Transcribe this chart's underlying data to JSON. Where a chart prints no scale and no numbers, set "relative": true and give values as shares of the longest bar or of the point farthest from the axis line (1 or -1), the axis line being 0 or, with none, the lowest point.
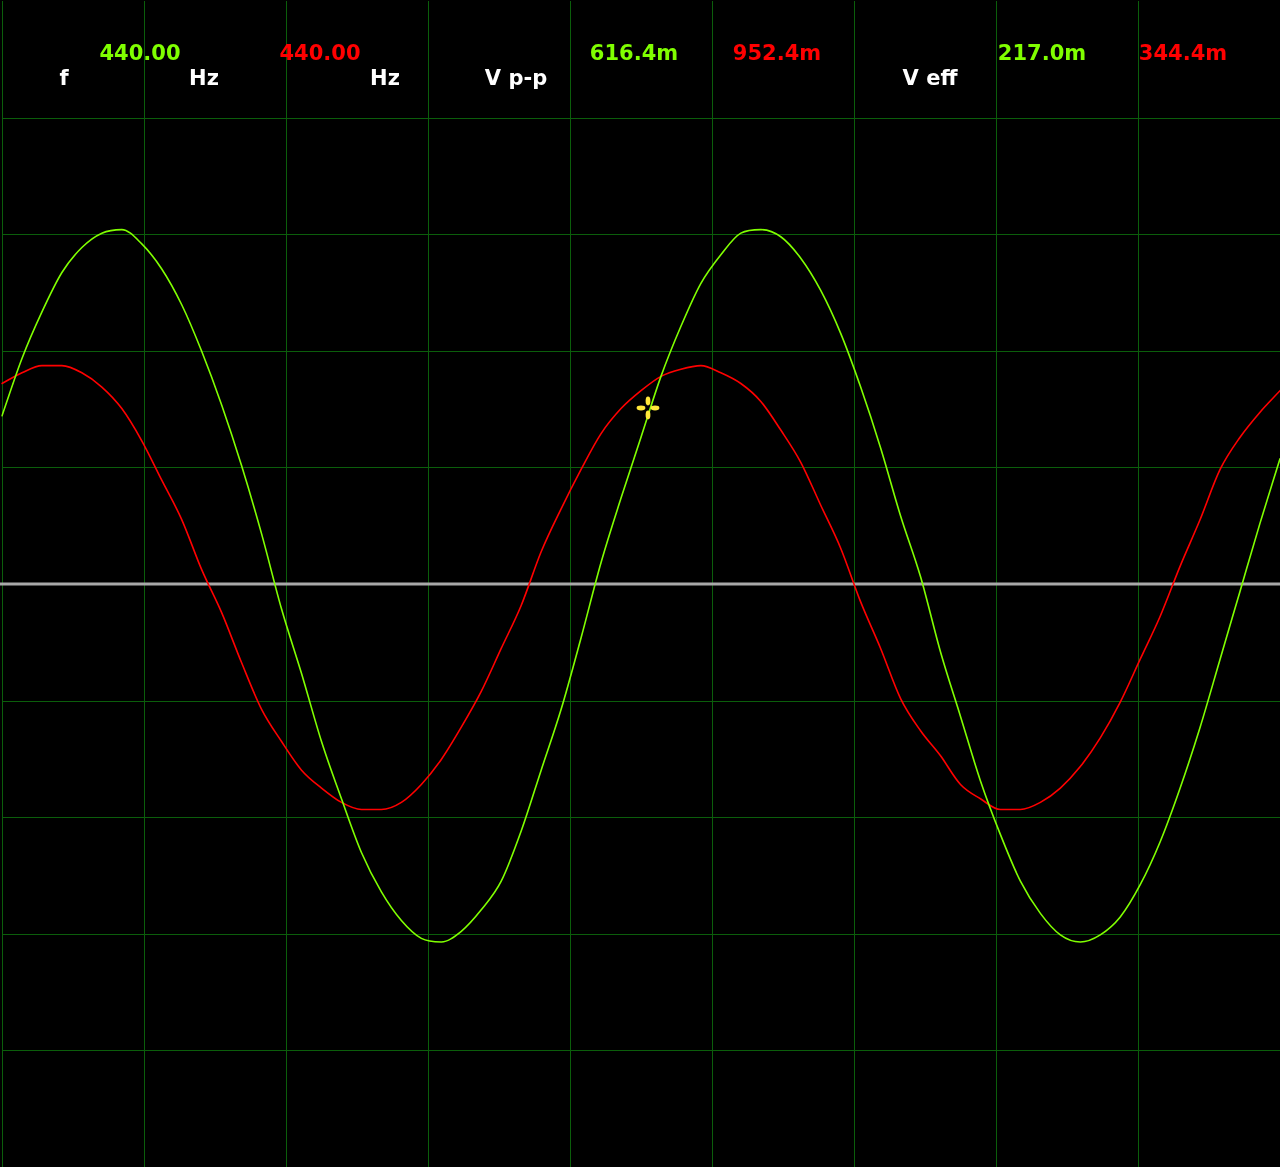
{
  "chart_data": {
    "type": "line",
    "relative": true,
    "grid": true,
    "marker": "none",
    "line_style": "solid",
    "annotations": [
      "f",
      "440.00",
      "Hz",
      "440.00",
      "Hz",
      "V p-p",
      "616.4m",
      "952.4m",
      "V eff",
      "217.0m",
      "344.4m"
    ],
    "categories": [
      null,
      null,
      null,
      null,
      null,
      null,
      null,
      null,
      null,
      null,
      null,
      null,
      null,
      null,
      null,
      null,
      null,
      null,
      null,
      null,
      null,
      null,
      null,
      null,
      null,
      null,
      null,
      null,
      null,
      null,
      null,
      null,
      null,
      null,
      null,
      null,
      null,
      null,
      null,
      null,
      null,
      null,
      null,
      null,
      null,
      null,
      null,
      null,
      null,
      null,
      null,
      null,
      null,
      null,
      null,
      null,
      null,
      null,
      null,
      null,
      null,
      null,
      null,
      null,
      null
    ],
    "series": [
      {
        "color": "#80ff00",
        "values": [
          0.47,
          0.63,
          0.76,
          0.87,
          0.94,
          0.98,
          0.99,
          0.95,
          0.88,
          0.78,
          0.65,
          0.5,
          0.33,
          0.14,
          -0.07,
          -0.25,
          -0.44,
          -0.6,
          -0.75,
          -0.86,
          -0.94,
          -0.99,
          -1,
          -0.97,
          -0.91,
          -0.83,
          -0.69,
          -0.52,
          -0.35,
          -0.15,
          0.06,
          0.24,
          0.41,
          0.58,
          0.72,
          0.84,
          0.92,
          0.98,
          0.99,
          0.97,
          0.91,
          0.82,
          0.7,
          0.55,
          0.38,
          0.19,
          0.02,
          -0.19,
          -0.37,
          -0.55,
          -0.7,
          -0.83,
          -0.92,
          -0.98,
          -1,
          -0.98,
          -0.93,
          -0.84,
          -0.72,
          -0.57,
          -0.4,
          -0.21,
          -0.02,
          0.17,
          0.35
        ]
      },
      {
        "color": "#ff0000",
        "values": [
          0.56,
          0.59,
          0.61,
          0.61,
          0.59,
          0.55,
          0.49,
          0.4,
          0.29,
          0.18,
          0.04,
          -0.08,
          -0.22,
          -0.35,
          -0.44,
          -0.52,
          -0.57,
          -0.61,
          -0.63,
          -0.63,
          -0.61,
          -0.56,
          -0.49,
          -0.4,
          -0.3,
          -0.18,
          -0.06,
          0.09,
          0.21,
          0.32,
          0.42,
          0.49,
          0.54,
          0.58,
          0.6,
          0.61,
          0.59,
          0.56,
          0.51,
          0.43,
          0.34,
          0.22,
          0.1,
          -0.05,
          -0.18,
          -0.32,
          -0.41,
          -0.48,
          -0.56,
          -0.6,
          -0.63,
          -0.63,
          -0.61,
          -0.57,
          -0.51,
          -0.43,
          -0.33,
          -0.21,
          -0.09,
          0.05,
          0.18,
          0.32,
          0.41,
          0.48,
          0.54
        ]
      }
    ]
  }
}
